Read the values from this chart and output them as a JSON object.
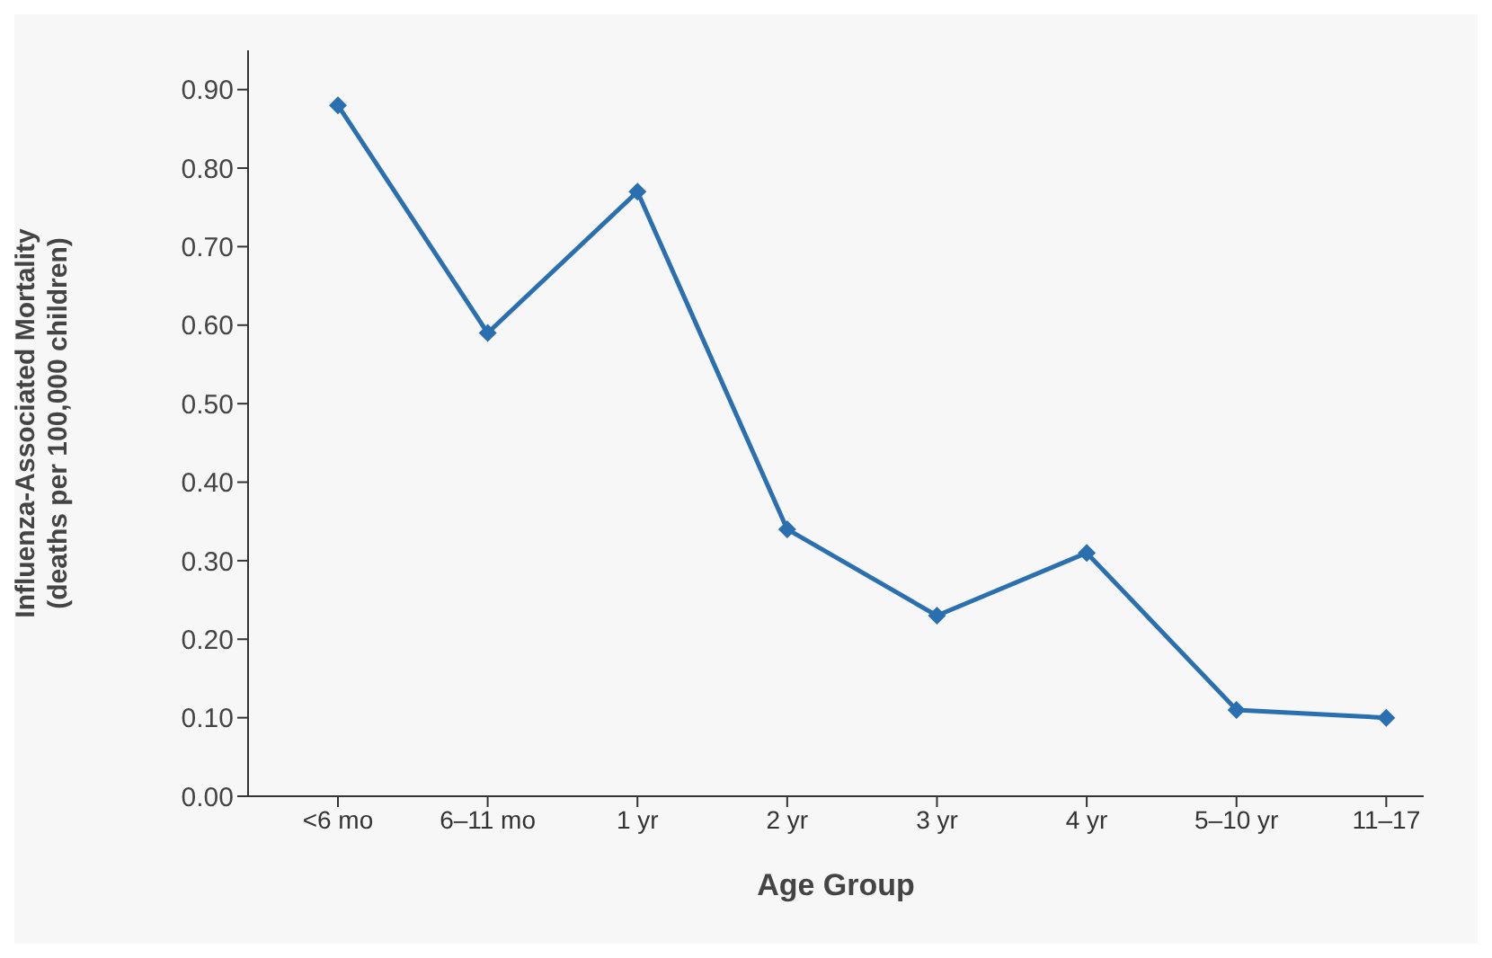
{
  "chart_data": {
    "type": "line",
    "xlabel": "Age Group",
    "ylabel": "Influenza-Associated Mortality\n(deaths per 100,000 children)",
    "categories": [
      "<6 mo",
      "6–11 mo",
      "1 yr",
      "2 yr",
      "3 yr",
      "4 yr",
      "5–10 yr",
      "11–17"
    ],
    "series": [
      {
        "color": "#2a6fb0",
        "values": [
          0.88,
          0.59,
          0.77,
          0.34,
          0.23,
          0.31,
          0.11,
          0.1
        ]
      }
    ],
    "ylim": [
      0,
      0.95
    ],
    "yticks": [
      {
        "value": 0,
        "label": "0.00"
      },
      {
        "value": 0.1,
        "label": "0.10"
      },
      {
        "value": 0.2,
        "label": "0.20"
      },
      {
        "value": 0.3,
        "label": "0.30"
      },
      {
        "value": 0.4,
        "label": "0.40"
      },
      {
        "value": 0.5,
        "label": "0.50"
      },
      {
        "value": 0.6,
        "label": "0.60"
      },
      {
        "value": 0.7,
        "label": "0.70"
      },
      {
        "value": 0.8,
        "label": "0.80"
      },
      {
        "value": 0.9,
        "label": "0.90"
      }
    ],
    "grid": false,
    "legend": false,
    "marker": "diamond",
    "line_style": "solid"
  }
}
